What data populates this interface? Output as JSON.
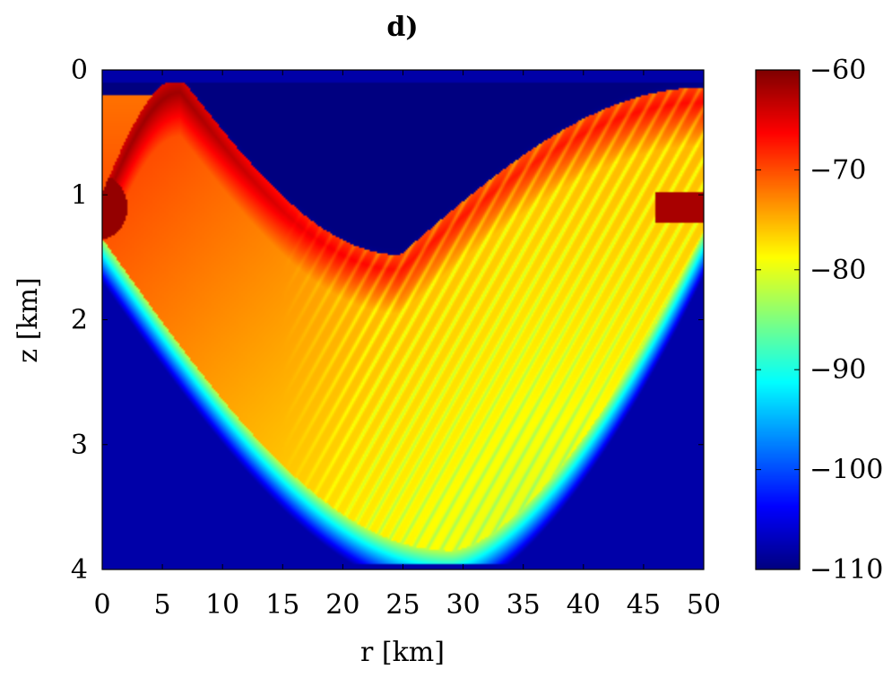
{
  "chart_data": {
    "type": "heatmap",
    "title": "d)",
    "xlabel": "r [km]",
    "ylabel": "z [km]",
    "xlim": [
      0,
      50
    ],
    "ylim": [
      4,
      0
    ],
    "x_ticks": [
      0,
      5,
      10,
      15,
      20,
      25,
      30,
      35,
      40,
      45,
      50
    ],
    "y_ticks": [
      0,
      1,
      2,
      3,
      4
    ],
    "colorbar": {
      "colormap": "jet",
      "range": [
        -110,
        -60
      ],
      "ticks": [
        -60,
        -70,
        -80,
        -90,
        -100,
        -110
      ],
      "tick_labels": [
        "−60",
        "−70",
        "−80",
        "−90",
        "−100",
        "−110"
      ]
    },
    "source_depth_km": 1.1,
    "surface_depth_km": 0.1,
    "bottom_depth_km": 3.95,
    "grid": false
  }
}
